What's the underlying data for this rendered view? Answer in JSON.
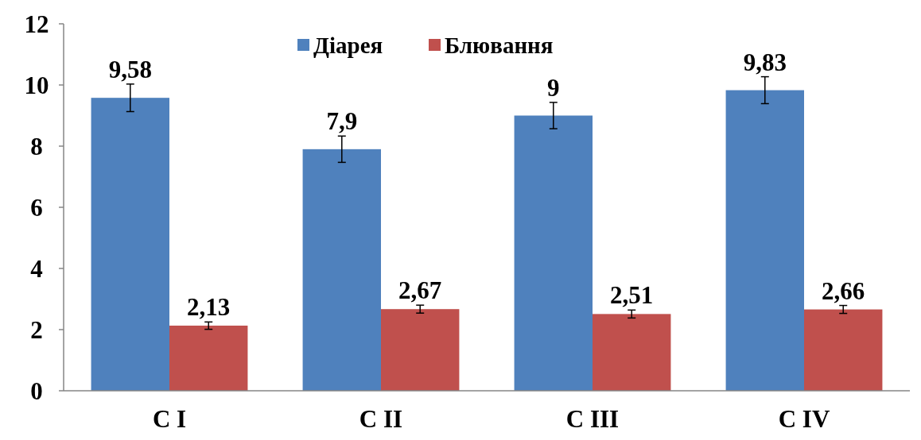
{
  "chart_data": {
    "type": "bar",
    "categories": [
      "C I",
      "C II",
      "C III",
      "C IV"
    ],
    "series": [
      {
        "name": "Діарея",
        "color": "#4f81bd",
        "values": [
          9.58,
          7.9,
          9,
          9.83
        ],
        "value_labels": [
          "9,58",
          "7,9",
          "9",
          "9,83"
        ],
        "errors": [
          0.45,
          0.43,
          0.43,
          0.44
        ]
      },
      {
        "name": "Блювання",
        "color": "#c0504d",
        "values": [
          2.13,
          2.67,
          2.51,
          2.66
        ],
        "value_labels": [
          "2,13",
          "2,67",
          "2,51",
          "2,66"
        ],
        "errors": [
          0.12,
          0.13,
          0.13,
          0.13
        ]
      }
    ],
    "ylim": [
      0,
      12
    ],
    "yticks": [
      0,
      2,
      4,
      6,
      8,
      10,
      12
    ],
    "legend": "top",
    "grid": false
  }
}
